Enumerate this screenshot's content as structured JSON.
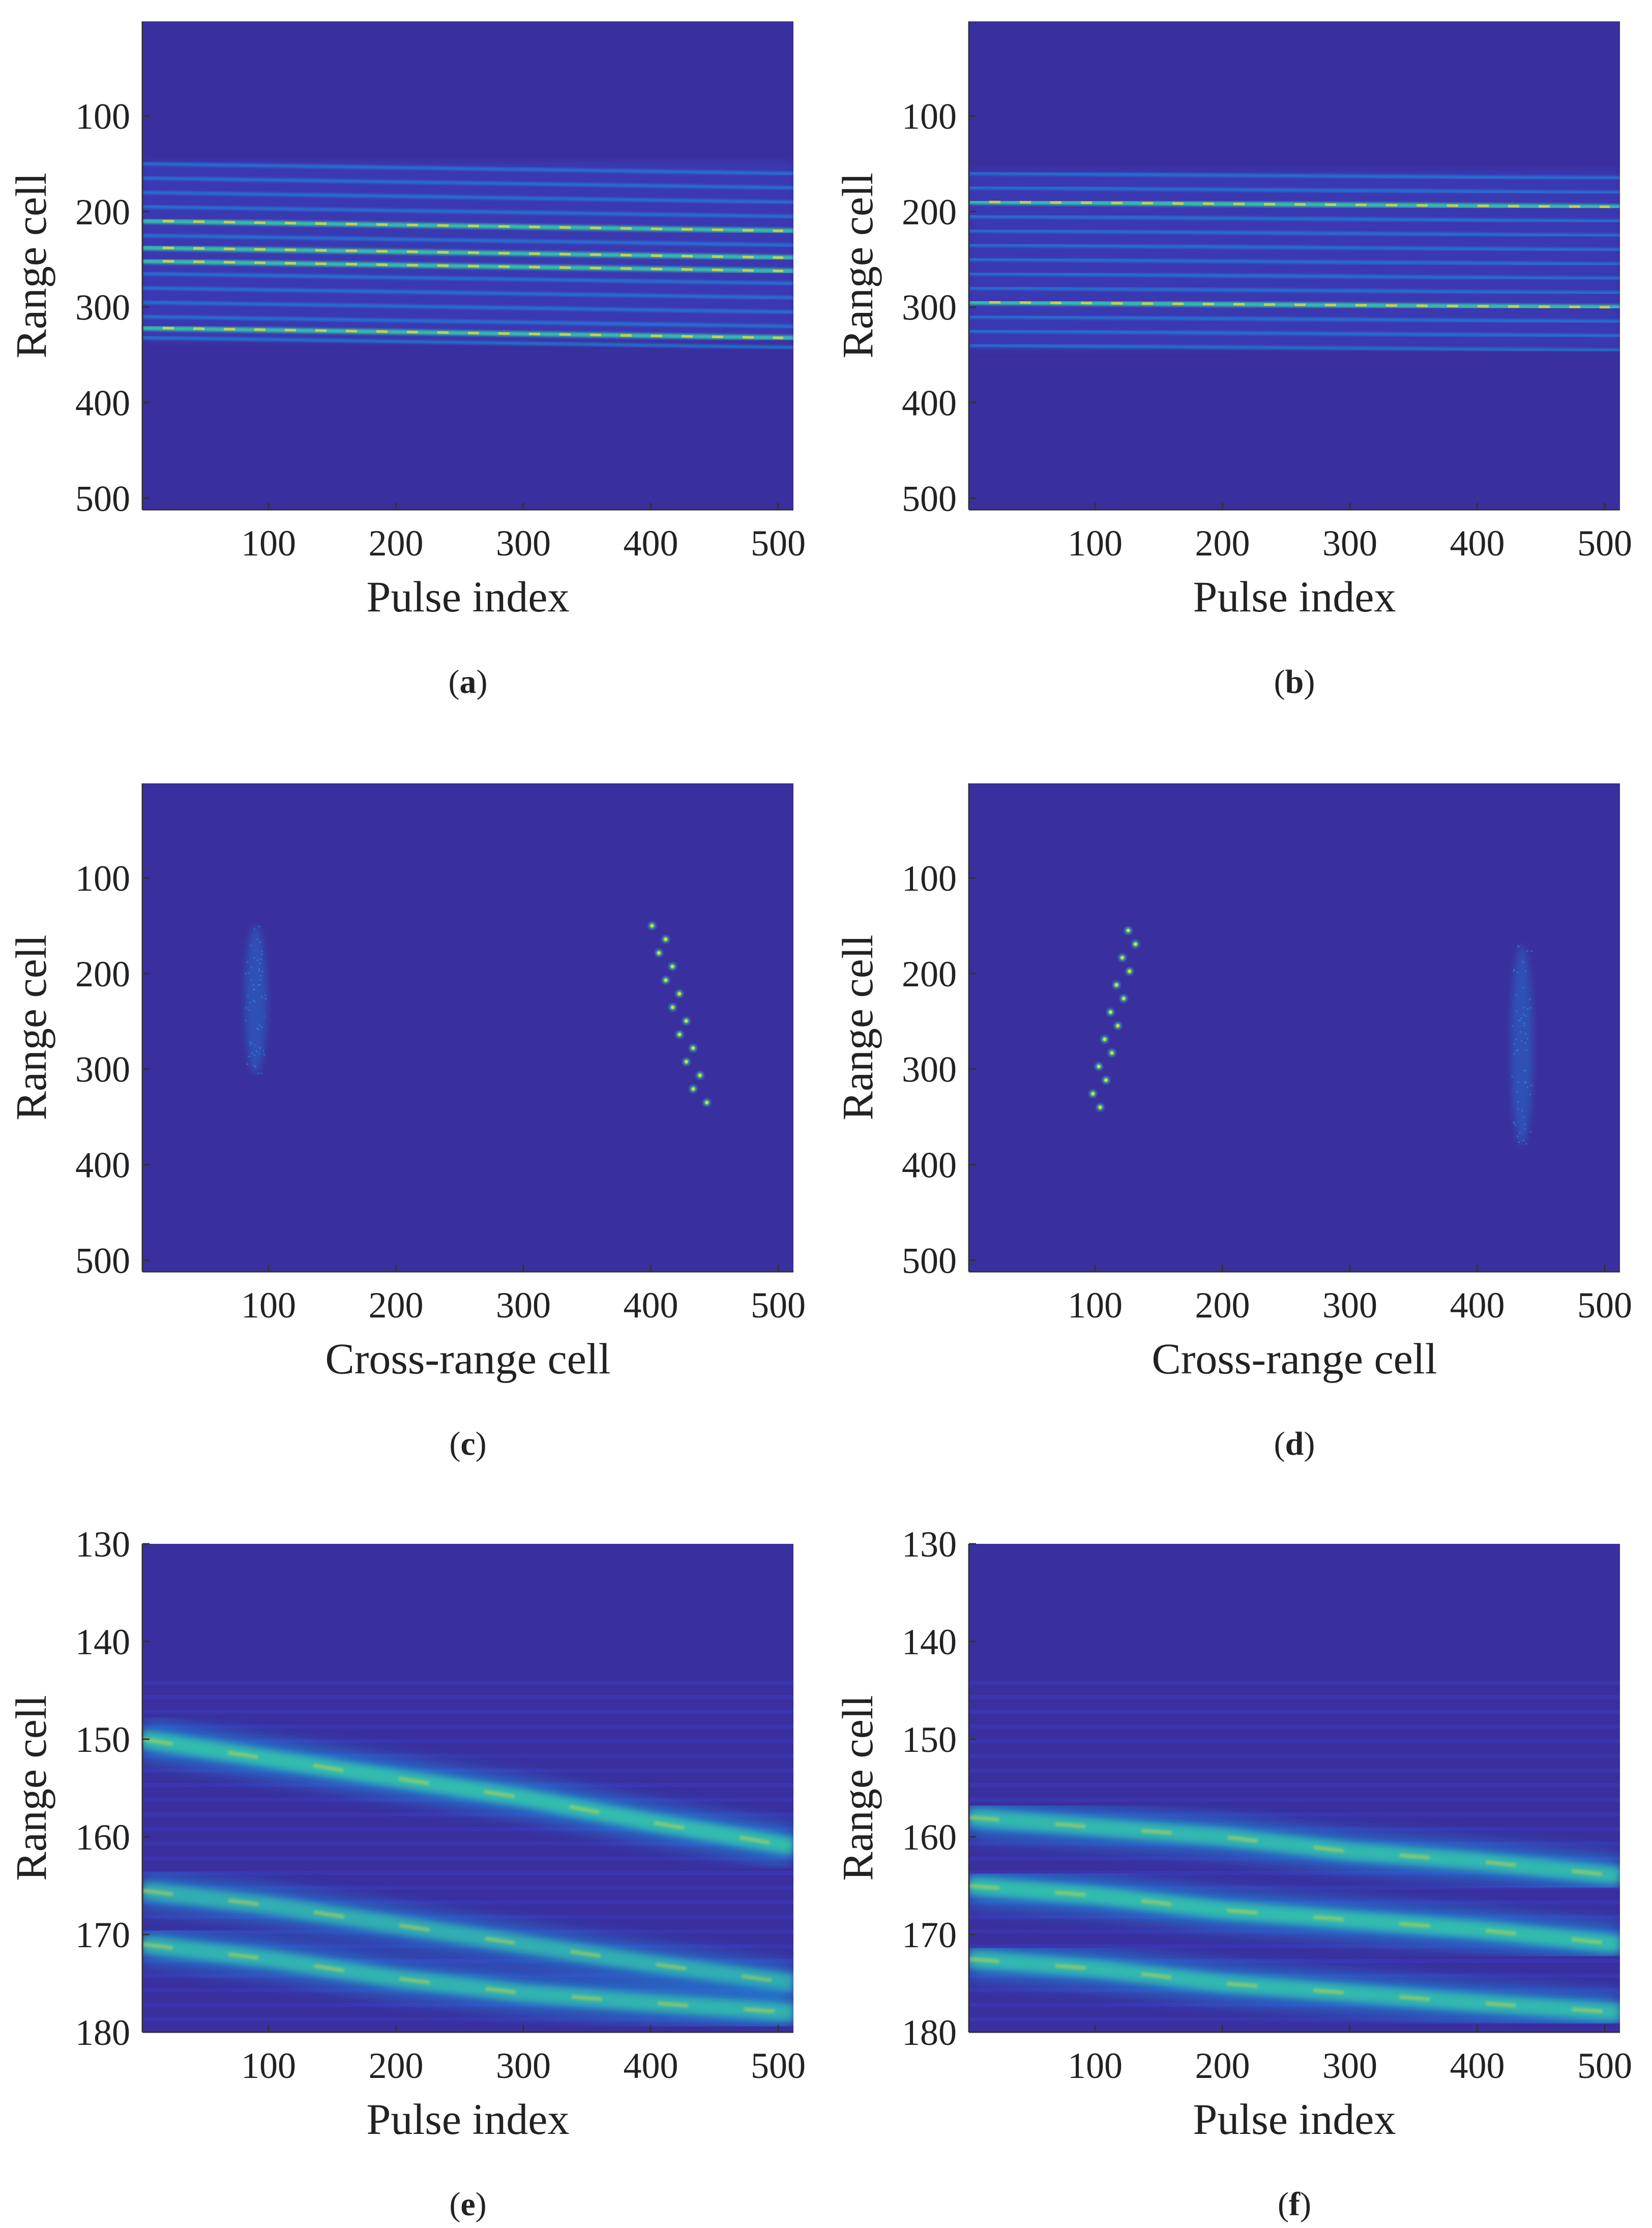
{
  "figure": {
    "colors": {
      "background": "#3a2f9e",
      "low": "#3d3fc4",
      "mid": "#1f8fe0",
      "high": "#35c9a8",
      "peak": "#d7d93a"
    }
  },
  "chart_data": [
    {
      "panel": "a",
      "type": "heatmap",
      "caption_label": "a",
      "xlabel": "Pulse index",
      "ylabel": "Range cell",
      "xlim": [
        1,
        512
      ],
      "ylim": [
        1,
        512
      ],
      "y_reversed": true,
      "xticks": [
        "100",
        "200",
        "300",
        "400",
        "500"
      ],
      "xtick_values": [
        100,
        200,
        300,
        400,
        500
      ],
      "yticks": [
        "100",
        "200",
        "300",
        "400",
        "500"
      ],
      "ytick_values": [
        100,
        200,
        300,
        400,
        500
      ],
      "pattern": "horizontal_bands",
      "band_range_cells": [
        150,
        165,
        180,
        195,
        210,
        225,
        238,
        252,
        265,
        280,
        295,
        310,
        322,
        332
      ],
      "band_slope_cells_per_pulse": 0.02,
      "bright_band_cells": [
        210,
        238,
        252,
        322
      ]
    },
    {
      "panel": "b",
      "type": "heatmap",
      "caption_label": "b",
      "xlabel": "Pulse index",
      "ylabel": "Range cell",
      "xlim": [
        1,
        512
      ],
      "ylim": [
        1,
        512
      ],
      "y_reversed": true,
      "xticks": [
        "100",
        "200",
        "300",
        "400",
        "500"
      ],
      "xtick_values": [
        100,
        200,
        300,
        400,
        500
      ],
      "yticks": [
        "100",
        "200",
        "300",
        "400",
        "500"
      ],
      "ytick_values": [
        100,
        200,
        300,
        400,
        500
      ],
      "pattern": "horizontal_bands",
      "band_range_cells": [
        160,
        175,
        190,
        205,
        220,
        235,
        250,
        265,
        280,
        295,
        310,
        325,
        340
      ],
      "band_slope_cells_per_pulse": 0.01,
      "bright_band_cells": [
        190,
        295
      ]
    },
    {
      "panel": "c",
      "type": "heatmap",
      "caption_label": "c",
      "xlabel": "Cross-range cell",
      "ylabel": "Range cell",
      "xlim": [
        1,
        512
      ],
      "ylim": [
        1,
        512
      ],
      "y_reversed": true,
      "xticks": [
        "100",
        "200",
        "300",
        "400",
        "500"
      ],
      "xtick_values": [
        100,
        200,
        300,
        400,
        500
      ],
      "yticks": [
        "100",
        "200",
        "300",
        "400",
        "500"
      ],
      "ytick_values": [
        100,
        200,
        300,
        400,
        500
      ],
      "pattern": "scatter_targets",
      "bright_target": {
        "x_start": 405,
        "y_start": 150,
        "x_end": 440,
        "y_end": 335
      },
      "faint_target": {
        "x_center": 90,
        "y_start": 150,
        "y_end": 305
      }
    },
    {
      "panel": "d",
      "type": "heatmap",
      "caption_label": "d",
      "xlabel": "Cross-range cell",
      "ylabel": "Range cell",
      "xlim": [
        1,
        512
      ],
      "ylim": [
        1,
        512
      ],
      "y_reversed": true,
      "xticks": [
        "100",
        "200",
        "300",
        "400",
        "500"
      ],
      "xtick_values": [
        100,
        200,
        300,
        400,
        500
      ],
      "yticks": [
        "100",
        "200",
        "300",
        "400",
        "500"
      ],
      "ytick_values": [
        100,
        200,
        300,
        400,
        500
      ],
      "pattern": "scatter_targets",
      "bright_target": {
        "x_start": 130,
        "y_start": 155,
        "x_end": 100,
        "y_end": 340
      },
      "faint_target": {
        "x_center": 435,
        "y_start": 170,
        "y_end": 380
      }
    },
    {
      "panel": "e",
      "type": "heatmap",
      "caption_label": "e",
      "xlabel": "Pulse index",
      "ylabel": "Range cell",
      "xlim": [
        1,
        512
      ],
      "ylim": [
        130,
        180
      ],
      "y_reversed": true,
      "xticks": [
        "100",
        "200",
        "300",
        "400",
        "500"
      ],
      "xtick_values": [
        100,
        200,
        300,
        400,
        500
      ],
      "yticks": [
        "130",
        "140",
        "150",
        "160",
        "170",
        "180"
      ],
      "ytick_values": [
        130,
        140,
        150,
        160,
        170,
        180
      ],
      "pattern": "sloped_bands",
      "bands": [
        {
          "points": [
            [
              1,
              150
            ],
            [
              100,
              152
            ],
            [
              200,
              154
            ],
            [
              300,
              156
            ],
            [
              400,
              158.5
            ],
            [
              512,
              161
            ]
          ],
          "strength": 1.0
        },
        {
          "points": [
            [
              1,
              165.5
            ],
            [
              100,
              167
            ],
            [
              200,
              169
            ],
            [
              300,
              171
            ],
            [
              400,
              173
            ],
            [
              512,
              175
            ]
          ],
          "strength": 0.85
        },
        {
          "points": [
            [
              1,
              171
            ],
            [
              100,
              172.5
            ],
            [
              200,
              174.5
            ],
            [
              300,
              176
            ],
            [
              400,
              177
            ],
            [
              512,
              178
            ]
          ],
          "strength": 0.9
        }
      ]
    },
    {
      "panel": "f",
      "type": "heatmap",
      "caption_label": "f",
      "xlabel": "Pulse index",
      "ylabel": "Range cell",
      "xlim": [
        1,
        512
      ],
      "ylim": [
        130,
        180
      ],
      "y_reversed": true,
      "xticks": [
        "100",
        "200",
        "300",
        "400",
        "500"
      ],
      "xtick_values": [
        100,
        200,
        300,
        400,
        500
      ],
      "yticks": [
        "130",
        "140",
        "150",
        "160",
        "170",
        "180"
      ],
      "ytick_values": [
        130,
        140,
        150,
        160,
        170,
        180
      ],
      "pattern": "sloped_bands",
      "bands": [
        {
          "points": [
            [
              1,
              158
            ],
            [
              100,
              159
            ],
            [
              200,
              160
            ],
            [
              300,
              161.5
            ],
            [
              400,
              162.5
            ],
            [
              512,
              164
            ]
          ],
          "strength": 0.95
        },
        {
          "points": [
            [
              1,
              165
            ],
            [
              100,
              166
            ],
            [
              200,
              167.5
            ],
            [
              300,
              168.5
            ],
            [
              400,
              169.5
            ],
            [
              512,
              171
            ]
          ],
          "strength": 1.0
        },
        {
          "points": [
            [
              1,
              172.5
            ],
            [
              100,
              173.5
            ],
            [
              200,
              175
            ],
            [
              300,
              176
            ],
            [
              400,
              177
            ],
            [
              512,
              178
            ]
          ],
          "strength": 0.95
        }
      ]
    }
  ]
}
